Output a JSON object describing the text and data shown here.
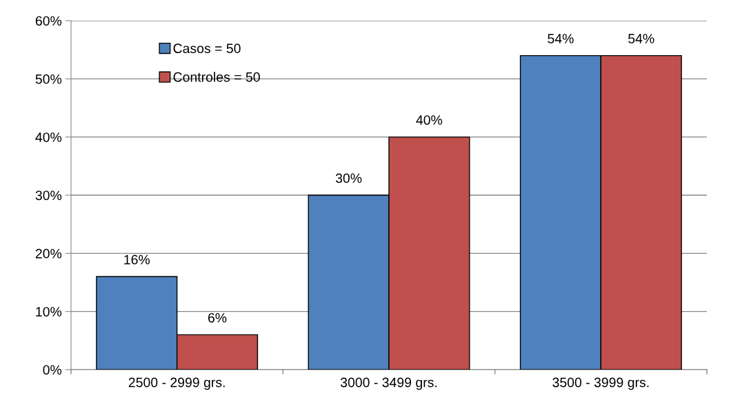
{
  "chart_data": {
    "type": "bar",
    "categories": [
      "2500 - 2999 grs.",
      "3000 - 3499 grs.",
      "3500 - 3999 grs."
    ],
    "series": [
      {
        "name": "Casos = 50",
        "color": "#4f81bd",
        "values": [
          16,
          30,
          54
        ],
        "value_labels": [
          "16%",
          "30%",
          "54%"
        ]
      },
      {
        "name": "Controles = 50",
        "color": "#c0504d",
        "values": [
          6,
          40,
          54
        ],
        "value_labels": [
          "6%",
          "40%",
          "54%"
        ]
      }
    ],
    "ylim": [
      0,
      60
    ],
    "yticks": [
      {
        "value": 0,
        "label": "0%"
      },
      {
        "value": 10,
        "label": "10%"
      },
      {
        "value": 20,
        "label": "20%"
      },
      {
        "value": 30,
        "label": "30%"
      },
      {
        "value": 40,
        "label": "40%"
      },
      {
        "value": 50,
        "label": "50%"
      },
      {
        "value": 60,
        "label": "60%"
      }
    ],
    "grid": "y",
    "legend": "top left"
  }
}
